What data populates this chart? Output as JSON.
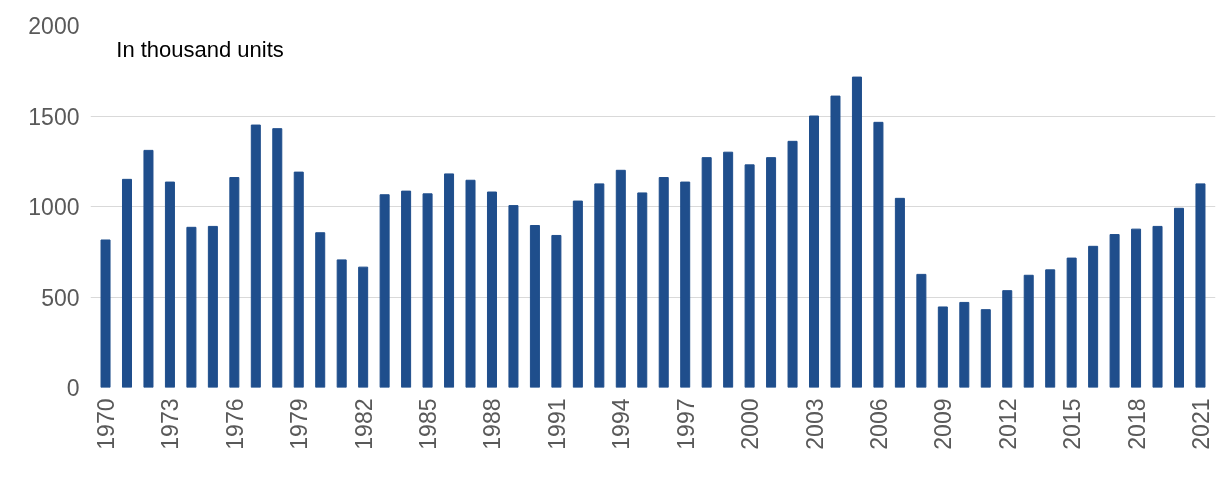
{
  "chart_data": {
    "type": "bar",
    "categories": [
      "1970",
      null,
      null,
      "1973",
      null,
      null,
      "1976",
      null,
      null,
      "1979",
      null,
      null,
      "1982",
      null,
      null,
      "1985",
      null,
      null,
      "1988",
      null,
      null,
      "1991",
      null,
      null,
      "1994",
      null,
      null,
      "1997",
      null,
      null,
      "2000",
      null,
      null,
      "2003",
      null,
      null,
      "2006",
      null,
      null,
      "2009",
      null,
      null,
      "2012",
      null,
      null,
      "2015",
      null,
      null,
      "2018",
      null,
      null,
      "2021"
    ],
    "values": [
      815,
      1150,
      1310,
      1135,
      885,
      890,
      1160,
      1450,
      1430,
      1190,
      855,
      705,
      665,
      1065,
      1085,
      1070,
      1180,
      1145,
      1080,
      1005,
      895,
      840,
      1030,
      1125,
      1200,
      1075,
      1160,
      1135,
      1270,
      1300,
      1230,
      1270,
      1360,
      1500,
      1610,
      1715,
      1465,
      1045,
      625,
      445,
      470,
      430,
      535,
      620,
      650,
      715,
      780,
      845,
      875,
      890,
      990,
      1125
    ],
    "color": "#1f4e8c",
    "ylim": [
      0,
      2000
    ],
    "yticks": [
      0,
      500,
      1000,
      1500,
      2000
    ],
    "grid": "y",
    "annotations": [
      "In thousand units"
    ]
  }
}
